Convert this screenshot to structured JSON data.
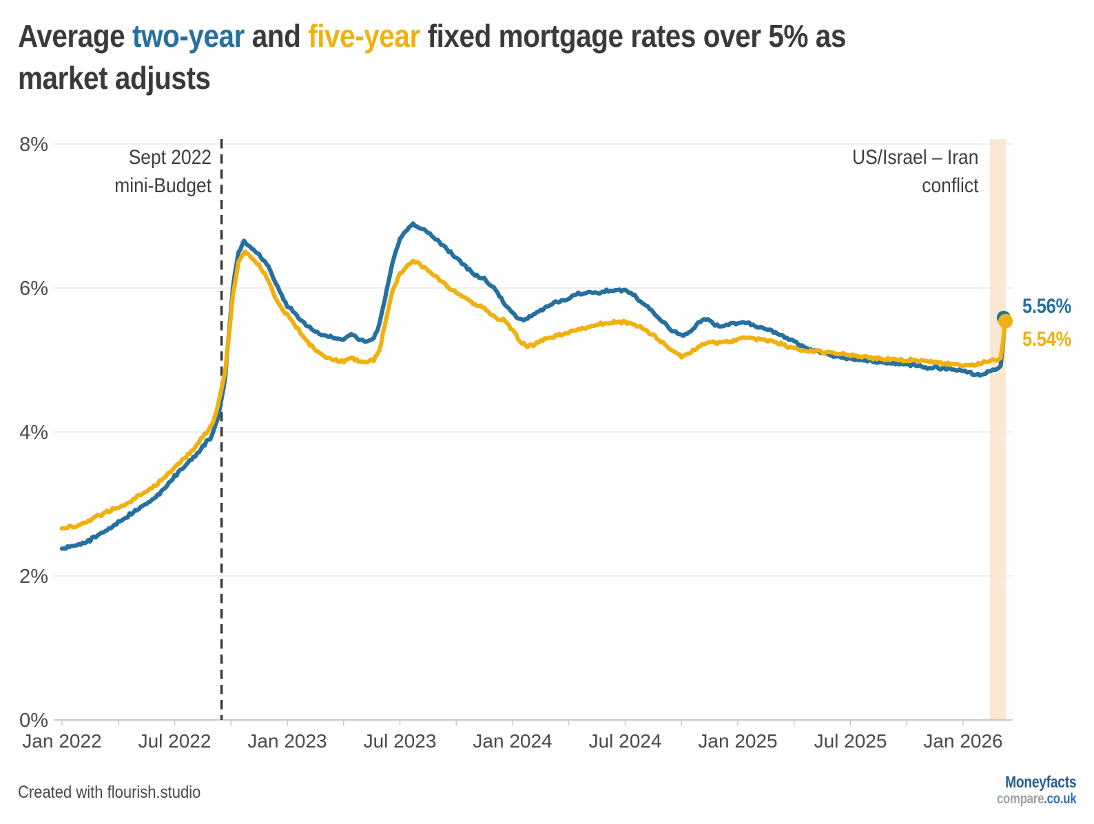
{
  "title": {
    "segments": [
      {
        "text": "Average ",
        "style": "dark"
      },
      {
        "text": "two-year",
        "style": "blue"
      },
      {
        "text": " and ",
        "style": "dark"
      },
      {
        "text": "five-year",
        "style": "yellow"
      },
      {
        "text": " fixed mortgage rates over 5% as\nmarket adjusts",
        "style": "dark"
      }
    ]
  },
  "chart_data": {
    "type": "line",
    "x_unit": "months since Jan 2022",
    "xlim": [
      0,
      50.6
    ],
    "ylim": [
      0,
      8
    ],
    "grid": true,
    "x_ticks": [
      {
        "month": 0,
        "label": "Jan 2022"
      },
      {
        "month": 6,
        "label": "Jul 2022"
      },
      {
        "month": 12,
        "label": "Jan 2023"
      },
      {
        "month": 18,
        "label": "Jul 2023"
      },
      {
        "month": 24,
        "label": "Jan 2024"
      },
      {
        "month": 30,
        "label": "Jul 2024"
      },
      {
        "month": 36,
        "label": "Jan 2025"
      },
      {
        "month": 42,
        "label": "Jul 2025"
      },
      {
        "month": 48,
        "label": "Jan 2026"
      }
    ],
    "minor_tick_step_months": 3,
    "y_ticks": [
      {
        "value": 0,
        "label": "0%"
      },
      {
        "value": 2,
        "label": "2%"
      },
      {
        "value": 4,
        "label": "4%"
      },
      {
        "value": 6,
        "label": "6%"
      },
      {
        "value": 8,
        "label": "8%"
      }
    ],
    "annotations": {
      "mini_budget": {
        "label": "Sept 2022\nmini-Budget",
        "month": 8.5
      },
      "conflict": {
        "label": "US/Israel – Iran\nconflict",
        "band": [
          49.43,
          50.27
        ]
      }
    },
    "series": [
      {
        "name": "two-year",
        "color": "#25709f",
        "end_label": "5.56%",
        "end_value": 5.56,
        "points": [
          [
            0,
            2.38
          ],
          [
            0.5,
            2.4
          ],
          [
            1,
            2.44
          ],
          [
            1.5,
            2.5
          ],
          [
            2,
            2.57
          ],
          [
            2.5,
            2.65
          ],
          [
            3,
            2.74
          ],
          [
            3.5,
            2.83
          ],
          [
            4,
            2.92
          ],
          [
            4.5,
            3.0
          ],
          [
            5,
            3.1
          ],
          [
            5.5,
            3.22
          ],
          [
            6,
            3.38
          ],
          [
            6.5,
            3.52
          ],
          [
            7,
            3.64
          ],
          [
            7.5,
            3.8
          ],
          [
            8,
            3.95
          ],
          [
            8.3,
            4.2
          ],
          [
            8.5,
            4.45
          ],
          [
            8.7,
            4.78
          ],
          [
            8.9,
            5.4
          ],
          [
            9.1,
            6.0
          ],
          [
            9.4,
            6.5
          ],
          [
            9.7,
            6.65
          ],
          [
            10,
            6.58
          ],
          [
            10.5,
            6.47
          ],
          [
            11,
            6.3
          ],
          [
            11.4,
            6.05
          ],
          [
            11.8,
            5.85
          ],
          [
            12,
            5.76
          ],
          [
            12.5,
            5.62
          ],
          [
            13,
            5.48
          ],
          [
            13.5,
            5.4
          ],
          [
            14,
            5.34
          ],
          [
            14.5,
            5.31
          ],
          [
            15,
            5.29
          ],
          [
            15.4,
            5.35
          ],
          [
            15.8,
            5.28
          ],
          [
            16.2,
            5.26
          ],
          [
            16.6,
            5.3
          ],
          [
            16.9,
            5.48
          ],
          [
            17.2,
            5.85
          ],
          [
            17.6,
            6.35
          ],
          [
            18,
            6.68
          ],
          [
            18.4,
            6.83
          ],
          [
            18.7,
            6.88
          ],
          [
            19,
            6.84
          ],
          [
            19.5,
            6.76
          ],
          [
            20,
            6.66
          ],
          [
            20.5,
            6.54
          ],
          [
            21,
            6.42
          ],
          [
            21.5,
            6.3
          ],
          [
            22,
            6.18
          ],
          [
            22.5,
            6.12
          ],
          [
            23,
            6.0
          ],
          [
            23.4,
            5.86
          ],
          [
            23.8,
            5.7
          ],
          [
            24.2,
            5.6
          ],
          [
            24.6,
            5.55
          ],
          [
            25,
            5.6
          ],
          [
            25.5,
            5.7
          ],
          [
            26,
            5.77
          ],
          [
            26.5,
            5.82
          ],
          [
            27,
            5.85
          ],
          [
            27.5,
            5.92
          ],
          [
            28,
            5.94
          ],
          [
            28.5,
            5.92
          ],
          [
            29,
            5.96
          ],
          [
            29.4,
            5.98
          ],
          [
            30,
            5.96
          ],
          [
            30.5,
            5.89
          ],
          [
            31,
            5.78
          ],
          [
            31.5,
            5.65
          ],
          [
            32,
            5.54
          ],
          [
            32.5,
            5.42
          ],
          [
            33,
            5.34
          ],
          [
            33.5,
            5.4
          ],
          [
            34,
            5.54
          ],
          [
            34.4,
            5.56
          ],
          [
            34.8,
            5.48
          ],
          [
            35.2,
            5.46
          ],
          [
            35.6,
            5.5
          ],
          [
            36,
            5.51
          ],
          [
            36.5,
            5.52
          ],
          [
            37,
            5.47
          ],
          [
            37.5,
            5.42
          ],
          [
            38,
            5.39
          ],
          [
            38.5,
            5.32
          ],
          [
            39,
            5.26
          ],
          [
            39.5,
            5.18
          ],
          [
            40,
            5.13
          ],
          [
            40.5,
            5.1
          ],
          [
            41,
            5.07
          ],
          [
            41.5,
            5.04
          ],
          [
            42,
            5.02
          ],
          [
            42.5,
            5.0
          ],
          [
            43,
            4.99
          ],
          [
            43.5,
            4.97
          ],
          [
            44,
            4.96
          ],
          [
            44.5,
            4.95
          ],
          [
            45,
            4.94
          ],
          [
            45.5,
            4.93
          ],
          [
            46,
            4.9
          ],
          [
            46.5,
            4.89
          ],
          [
            47,
            4.88
          ],
          [
            47.5,
            4.86
          ],
          [
            48,
            4.85
          ],
          [
            48.5,
            4.81
          ],
          [
            49,
            4.79
          ],
          [
            49.3,
            4.83
          ],
          [
            49.6,
            4.87
          ],
          [
            49.8,
            4.86
          ],
          [
            50,
            4.92
          ],
          [
            50.1,
            5.15
          ],
          [
            50.25,
            5.56
          ]
        ]
      },
      {
        "name": "five-year",
        "color": "#f0b110",
        "end_label": "5.54%",
        "end_value": 5.54,
        "points": [
          [
            0,
            2.66
          ],
          [
            0.5,
            2.68
          ],
          [
            1,
            2.71
          ],
          [
            1.5,
            2.77
          ],
          [
            2,
            2.84
          ],
          [
            2.5,
            2.9
          ],
          [
            3,
            2.96
          ],
          [
            3.5,
            3.02
          ],
          [
            4,
            3.1
          ],
          [
            4.5,
            3.18
          ],
          [
            5,
            3.26
          ],
          [
            5.5,
            3.38
          ],
          [
            6,
            3.5
          ],
          [
            6.5,
            3.63
          ],
          [
            7,
            3.76
          ],
          [
            7.5,
            3.93
          ],
          [
            8,
            4.1
          ],
          [
            8.3,
            4.35
          ],
          [
            8.5,
            4.6
          ],
          [
            8.7,
            4.85
          ],
          [
            8.9,
            5.35
          ],
          [
            9.1,
            5.9
          ],
          [
            9.4,
            6.35
          ],
          [
            9.75,
            6.51
          ],
          [
            10.1,
            6.42
          ],
          [
            10.5,
            6.32
          ],
          [
            11,
            6.1
          ],
          [
            11.4,
            5.85
          ],
          [
            11.8,
            5.68
          ],
          [
            12,
            5.63
          ],
          [
            12.5,
            5.45
          ],
          [
            13,
            5.28
          ],
          [
            13.5,
            5.13
          ],
          [
            14,
            5.05
          ],
          [
            14.5,
            5.0
          ],
          [
            15,
            4.97
          ],
          [
            15.4,
            5.03
          ],
          [
            15.8,
            4.99
          ],
          [
            16.2,
            4.97
          ],
          [
            16.6,
            5.0
          ],
          [
            16.9,
            5.12
          ],
          [
            17.2,
            5.5
          ],
          [
            17.6,
            5.95
          ],
          [
            18,
            6.2
          ],
          [
            18.4,
            6.32
          ],
          [
            18.7,
            6.37
          ],
          [
            19,
            6.34
          ],
          [
            19.5,
            6.24
          ],
          [
            20,
            6.14
          ],
          [
            20.5,
            6.02
          ],
          [
            21,
            5.94
          ],
          [
            21.5,
            5.86
          ],
          [
            22,
            5.78
          ],
          [
            22.5,
            5.72
          ],
          [
            23,
            5.6
          ],
          [
            23.3,
            5.56
          ],
          [
            23.6,
            5.55
          ],
          [
            24,
            5.42
          ],
          [
            24.4,
            5.25
          ],
          [
            24.8,
            5.18
          ],
          [
            25.2,
            5.22
          ],
          [
            25.6,
            5.28
          ],
          [
            26,
            5.31
          ],
          [
            26.5,
            5.35
          ],
          [
            27,
            5.38
          ],
          [
            27.5,
            5.43
          ],
          [
            28,
            5.46
          ],
          [
            28.5,
            5.49
          ],
          [
            29,
            5.51
          ],
          [
            29.5,
            5.53
          ],
          [
            30,
            5.52
          ],
          [
            30.5,
            5.49
          ],
          [
            31,
            5.44
          ],
          [
            31.5,
            5.34
          ],
          [
            32,
            5.24
          ],
          [
            32.5,
            5.13
          ],
          [
            33,
            5.06
          ],
          [
            33.5,
            5.1
          ],
          [
            34,
            5.2
          ],
          [
            34.5,
            5.25
          ],
          [
            35,
            5.24
          ],
          [
            35.5,
            5.26
          ],
          [
            36,
            5.27
          ],
          [
            36.3,
            5.32
          ],
          [
            36.7,
            5.3
          ],
          [
            37,
            5.28
          ],
          [
            37.5,
            5.27
          ],
          [
            38,
            5.25
          ],
          [
            38.5,
            5.2
          ],
          [
            39,
            5.16
          ],
          [
            39.5,
            5.14
          ],
          [
            40,
            5.12
          ],
          [
            40.5,
            5.11
          ],
          [
            41,
            5.1
          ],
          [
            41.5,
            5.08
          ],
          [
            42,
            5.07
          ],
          [
            42.5,
            5.06
          ],
          [
            43,
            5.04
          ],
          [
            43.5,
            5.02
          ],
          [
            44,
            5.01
          ],
          [
            44.5,
            5.0
          ],
          [
            45,
            5.0
          ],
          [
            45.5,
            4.99
          ],
          [
            46,
            4.98
          ],
          [
            46.5,
            4.97
          ],
          [
            47,
            4.96
          ],
          [
            47.5,
            4.94
          ],
          [
            48,
            4.93
          ],
          [
            48.5,
            4.93
          ],
          [
            49,
            4.95
          ],
          [
            49.3,
            4.98
          ],
          [
            49.6,
            5.0
          ],
          [
            49.8,
            4.99
          ],
          [
            50,
            5.03
          ],
          [
            50.1,
            5.2
          ],
          [
            50.25,
            5.54
          ]
        ]
      }
    ]
  },
  "colors": {
    "two_year": "#25709f",
    "five_year": "#f0b110",
    "band": "#fbe8d3",
    "grid": "#e8e8e8",
    "axis": "#c8c8c8",
    "dashed_line": "#3c3c3c",
    "title_text": "#3a3a3c",
    "axis_text": "#4a4a4a",
    "annotation_text": "#3d3d3d"
  },
  "footer": {
    "credit": "Created with flourish.studio",
    "logo": {
      "line1": "Moneyfacts",
      "line2_gray": "compare",
      "line2_blue": ".co.uk"
    }
  }
}
